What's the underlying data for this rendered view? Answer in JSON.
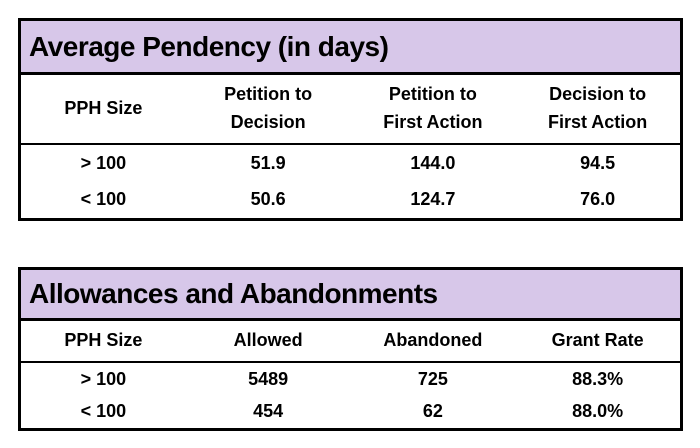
{
  "colors": {
    "table_header_fill": "#d7c7e9",
    "border": "#000000",
    "text": "#000000",
    "page_background": "#ffffff"
  },
  "chart_data": [
    {
      "type": "table",
      "title": "Average Pendency (in days)",
      "columns": [
        "PPH Size",
        "Petition to\nDecision",
        "Petition to\nFirst Action",
        "Decision to\nFirst Action"
      ],
      "rows": [
        [
          "> 100",
          "51.9",
          "144.0",
          "94.5"
        ],
        [
          "< 100",
          "50.6",
          "124.7",
          "76.0"
        ]
      ]
    },
    {
      "type": "table",
      "title": "Allowances and Abandonments",
      "columns": [
        "PPH Size",
        "Allowed",
        "Abandoned",
        "Grant Rate"
      ],
      "rows": [
        [
          "> 100",
          "5489",
          "725",
          "88.3%"
        ],
        [
          "< 100",
          "454",
          "62",
          "88.0%"
        ]
      ]
    }
  ]
}
